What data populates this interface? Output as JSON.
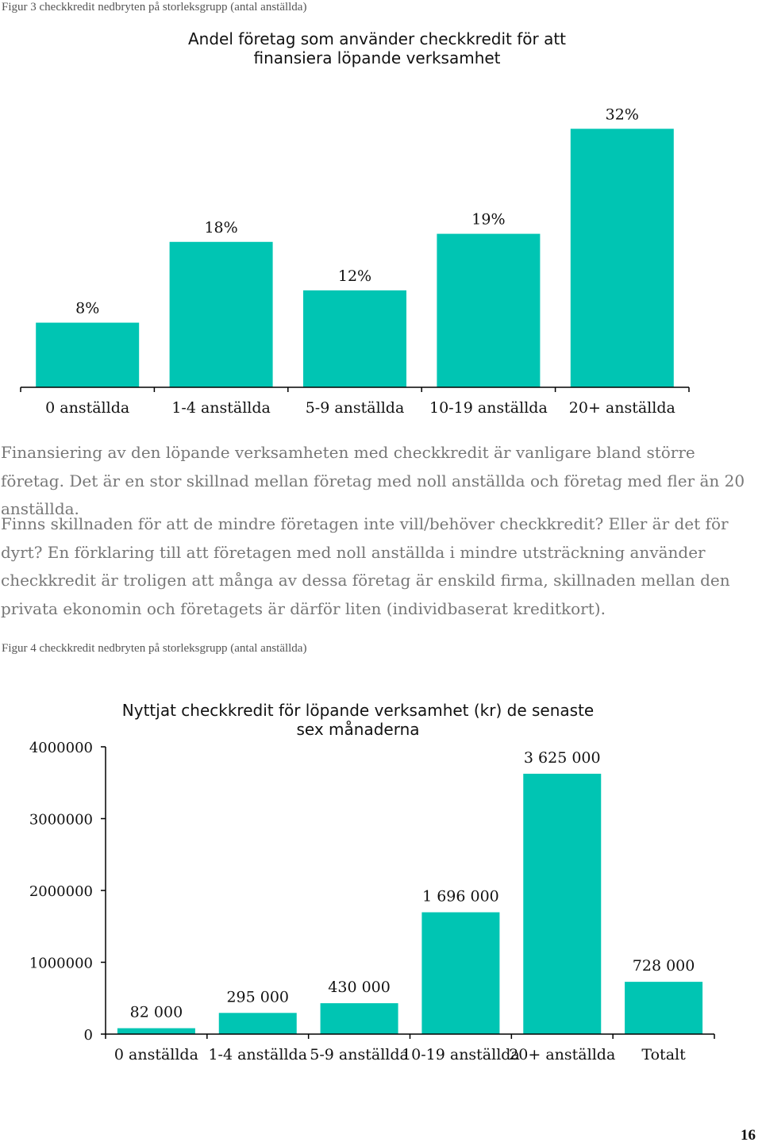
{
  "figure3": {
    "caption": "Figur 3 checkkredit nedbryten på storleksgrupp (antal anställda)"
  },
  "paragraph1": "Finansiering av den löpande verksamheten med checkkredit är vanligare bland större företag. Det är en stor skillnad mellan företag med noll anställda och företag med fler än 20 anställda.",
  "paragraph2": "Finns skillnaden för att de mindre företagen inte vill/behöver checkkredit? Eller är det för dyrt? En förklaring till att företagen med noll anställda i mindre utsträckning använder checkkredit är troligen att många av dessa företag är enskild firma, skillnaden mellan den privata ekonomin och företagets är därför liten (individbaserat kreditkort).",
  "figure4": {
    "caption": "Figur 4 checkkredit nedbryten på storleksgrupp (antal anställda)"
  },
  "page_number": "16",
  "colors": {
    "bar": "#00C5B3",
    "axis": "#000000"
  },
  "chart_data": [
    {
      "type": "bar",
      "title": "Andel företag som använder checkkredit för att finansiera löpande verksamhet",
      "categories": [
        "0 anställda",
        "1-4 anställda",
        "5-9 anställda",
        "10-19 anställda",
        "20+ anställda"
      ],
      "values": [
        8,
        18,
        12,
        19,
        32
      ],
      "data_labels": [
        "8%",
        "18%",
        "12%",
        "19%",
        "32%"
      ],
      "unit": "%",
      "ylim": [
        0,
        33.5
      ],
      "y_axis_visible": false,
      "grid": false,
      "legend": "none"
    },
    {
      "type": "bar",
      "title": "Nyttjat checkkredit för löpande verksamhet (kr) de senaste sex månaderna",
      "categories": [
        "0 anställda",
        "1-4 anställda",
        "5-9 anställda",
        "10-19 anställda",
        "20+ anställda",
        "Totalt"
      ],
      "values": [
        82000,
        295000,
        430000,
        1696000,
        3625000,
        728000
      ],
      "data_labels": [
        "82 000",
        "295 000",
        "430 000",
        "1 696 000",
        "3 625 000",
        "728 000"
      ],
      "ylim": [
        0,
        4000000
      ],
      "yticks": [
        0,
        1000000,
        2000000,
        3000000,
        4000000
      ],
      "ytick_labels": [
        "0",
        "1000000",
        "2000000",
        "3000000",
        "4000000"
      ],
      "grid": false,
      "legend": "none"
    }
  ]
}
